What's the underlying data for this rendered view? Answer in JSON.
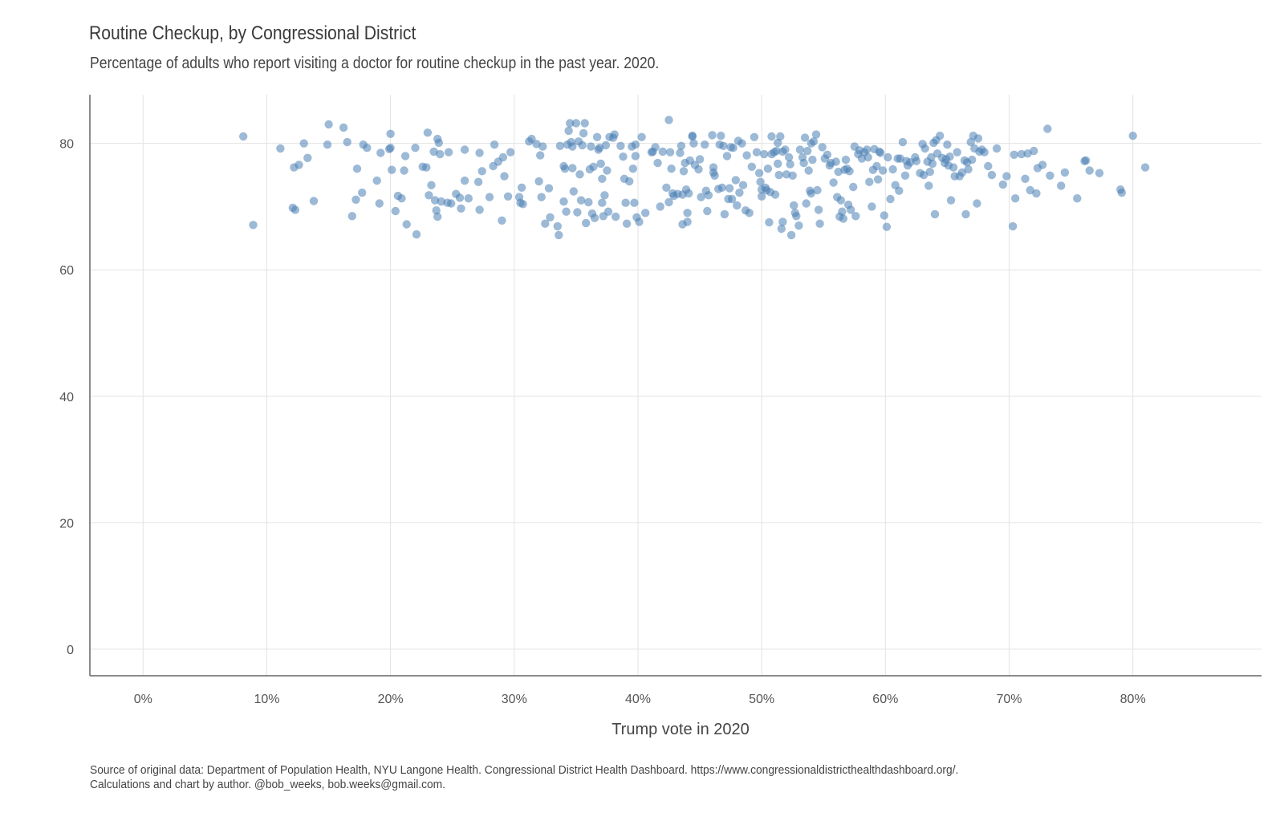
{
  "chart_data": {
    "type": "scatter",
    "title": "Routine Checkup, by Congressional District",
    "subtitle": "Percentage of adults who report visiting a doctor for routine checkup in the past year. 2020.",
    "xlabel": "Trump vote in 2020",
    "ylabel": "",
    "xlim": [
      -0.043,
      0.904
    ],
    "ylim": [
      -4.2,
      87.7
    ],
    "x_ticks": [
      0,
      0.1,
      0.2,
      0.3,
      0.4,
      0.5,
      0.6,
      0.7,
      0.8
    ],
    "x_tick_labels": [
      "0%",
      "10%",
      "20%",
      "30%",
      "40%",
      "50%",
      "60%",
      "70%",
      "80%"
    ],
    "y_ticks": [
      0,
      20,
      40,
      60,
      80
    ],
    "y_tick_labels": [
      "0",
      "20",
      "40",
      "60",
      "80"
    ],
    "grid": true,
    "marker_color": "#4a80b4",
    "points": [
      [
        0.081,
        81.1
      ],
      [
        0.089,
        67.1
      ],
      [
        0.111,
        79.2
      ],
      [
        0.121,
        69.8
      ],
      [
        0.122,
        76.2
      ],
      [
        0.123,
        69.5
      ],
      [
        0.126,
        76.6
      ],
      [
        0.13,
        80.0
      ],
      [
        0.133,
        77.7
      ],
      [
        0.138,
        70.9
      ],
      [
        0.149,
        79.8
      ],
      [
        0.15,
        83.0
      ],
      [
        0.162,
        82.5
      ],
      [
        0.165,
        80.2
      ],
      [
        0.169,
        68.5
      ],
      [
        0.172,
        71.1
      ],
      [
        0.173,
        76.0
      ],
      [
        0.177,
        72.2
      ],
      [
        0.178,
        79.8
      ],
      [
        0.181,
        79.3
      ],
      [
        0.189,
        74.1
      ],
      [
        0.191,
        70.5
      ],
      [
        0.192,
        78.5
      ],
      [
        0.199,
        79.1
      ],
      [
        0.2,
        81.5
      ],
      [
        0.2,
        79.3
      ],
      [
        0.201,
        75.8
      ],
      [
        0.204,
        69.3
      ],
      [
        0.206,
        71.7
      ],
      [
        0.209,
        71.3
      ],
      [
        0.211,
        75.7
      ],
      [
        0.212,
        78.0
      ],
      [
        0.213,
        67.2
      ],
      [
        0.22,
        79.3
      ],
      [
        0.221,
        65.6
      ],
      [
        0.226,
        76.3
      ],
      [
        0.229,
        76.2
      ],
      [
        0.23,
        81.7
      ],
      [
        0.231,
        71.8
      ],
      [
        0.233,
        73.4
      ],
      [
        0.235,
        78.7
      ],
      [
        0.236,
        71.0
      ],
      [
        0.237,
        69.4
      ],
      [
        0.238,
        68.4
      ],
      [
        0.238,
        80.7
      ],
      [
        0.239,
        80.1
      ],
      [
        0.24,
        78.3
      ],
      [
        0.241,
        70.8
      ],
      [
        0.246,
        70.6
      ],
      [
        0.247,
        78.6
      ],
      [
        0.249,
        70.5
      ],
      [
        0.253,
        72.0
      ],
      [
        0.256,
        71.4
      ],
      [
        0.257,
        69.7
      ],
      [
        0.26,
        74.1
      ],
      [
        0.26,
        79.0
      ],
      [
        0.263,
        71.3
      ],
      [
        0.271,
        73.9
      ],
      [
        0.272,
        78.5
      ],
      [
        0.272,
        69.5
      ],
      [
        0.274,
        75.6
      ],
      [
        0.28,
        71.5
      ],
      [
        0.283,
        76.4
      ],
      [
        0.284,
        79.8
      ],
      [
        0.287,
        77.1
      ],
      [
        0.29,
        67.8
      ],
      [
        0.291,
        77.8
      ],
      [
        0.292,
        74.8
      ],
      [
        0.295,
        71.6
      ],
      [
        0.297,
        78.6
      ],
      [
        0.304,
        71.5
      ],
      [
        0.305,
        70.6
      ],
      [
        0.306,
        73.0
      ],
      [
        0.307,
        70.4
      ],
      [
        0.312,
        80.3
      ],
      [
        0.314,
        80.7
      ],
      [
        0.318,
        79.9
      ],
      [
        0.32,
        74.0
      ],
      [
        0.321,
        78.1
      ],
      [
        0.322,
        71.5
      ],
      [
        0.323,
        79.5
      ],
      [
        0.325,
        67.3
      ],
      [
        0.328,
        72.9
      ],
      [
        0.329,
        68.3
      ],
      [
        0.335,
        66.9
      ],
      [
        0.336,
        65.5
      ],
      [
        0.337,
        79.6
      ],
      [
        0.34,
        76.4
      ],
      [
        0.34,
        70.8
      ],
      [
        0.341,
        76.0
      ],
      [
        0.342,
        69.2
      ],
      [
        0.343,
        79.8
      ],
      [
        0.344,
        82.0
      ],
      [
        0.345,
        83.2
      ],
      [
        0.346,
        80.2
      ],
      [
        0.347,
        79.5
      ],
      [
        0.347,
        76.1
      ],
      [
        0.348,
        72.4
      ],
      [
        0.35,
        83.2
      ],
      [
        0.351,
        69.1
      ],
      [
        0.352,
        80.3
      ],
      [
        0.353,
        75.1
      ],
      [
        0.354,
        71.0
      ],
      [
        0.355,
        79.7
      ],
      [
        0.356,
        81.6
      ],
      [
        0.357,
        83.2
      ],
      [
        0.358,
        67.4
      ],
      [
        0.36,
        70.7
      ],
      [
        0.361,
        75.9
      ],
      [
        0.362,
        79.5
      ],
      [
        0.363,
        68.9
      ],
      [
        0.364,
        76.3
      ],
      [
        0.365,
        68.2
      ],
      [
        0.367,
        81.0
      ],
      [
        0.368,
        79.0
      ],
      [
        0.369,
        79.3
      ],
      [
        0.37,
        76.8
      ],
      [
        0.371,
        70.6
      ],
      [
        0.371,
        74.4
      ],
      [
        0.372,
        68.5
      ],
      [
        0.373,
        71.8
      ],
      [
        0.374,
        79.7
      ],
      [
        0.375,
        75.7
      ],
      [
        0.376,
        69.2
      ],
      [
        0.377,
        81.0
      ],
      [
        0.38,
        80.9
      ],
      [
        0.381,
        81.4
      ],
      [
        0.382,
        68.4
      ],
      [
        0.386,
        79.6
      ],
      [
        0.388,
        77.9
      ],
      [
        0.389,
        74.4
      ],
      [
        0.39,
        70.6
      ],
      [
        0.391,
        67.3
      ],
      [
        0.393,
        74.0
      ],
      [
        0.395,
        79.5
      ],
      [
        0.396,
        76.0
      ],
      [
        0.397,
        70.6
      ],
      [
        0.398,
        78.0
      ],
      [
        0.398,
        79.8
      ],
      [
        0.399,
        68.3
      ],
      [
        0.401,
        67.6
      ],
      [
        0.403,
        81.0
      ],
      [
        0.406,
        69.0
      ],
      [
        0.411,
        78.6
      ],
      [
        0.412,
        78.7
      ],
      [
        0.414,
        79.4
      ],
      [
        0.416,
        76.9
      ],
      [
        0.418,
        70.0
      ],
      [
        0.42,
        78.7
      ],
      [
        0.423,
        73.0
      ],
      [
        0.425,
        83.7
      ],
      [
        0.425,
        70.7
      ],
      [
        0.426,
        78.6
      ],
      [
        0.427,
        76.0
      ],
      [
        0.428,
        72.1
      ],
      [
        0.429,
        71.7
      ],
      [
        0.432,
        72.0
      ],
      [
        0.434,
        78.5
      ],
      [
        0.435,
        79.6
      ],
      [
        0.436,
        67.2
      ],
      [
        0.436,
        71.9
      ],
      [
        0.437,
        75.6
      ],
      [
        0.438,
        76.9
      ],
      [
        0.439,
        72.7
      ],
      [
        0.44,
        67.6
      ],
      [
        0.44,
        69.0
      ],
      [
        0.441,
        72.1
      ],
      [
        0.442,
        77.3
      ],
      [
        0.444,
        81.2
      ],
      [
        0.444,
        81.1
      ],
      [
        0.445,
        80.0
      ],
      [
        0.446,
        76.6
      ],
      [
        0.449,
        75.9
      ],
      [
        0.45,
        77.5
      ],
      [
        0.451,
        71.5
      ],
      [
        0.454,
        79.8
      ],
      [
        0.455,
        72.5
      ],
      [
        0.456,
        69.3
      ],
      [
        0.457,
        71.8
      ],
      [
        0.46,
        81.3
      ],
      [
        0.461,
        76.2
      ],
      [
        0.461,
        75.4
      ],
      [
        0.462,
        74.9
      ],
      [
        0.465,
        72.8
      ],
      [
        0.466,
        79.8
      ],
      [
        0.467,
        81.2
      ],
      [
        0.468,
        73.0
      ],
      [
        0.469,
        79.6
      ],
      [
        0.47,
        68.8
      ],
      [
        0.472,
        78.0
      ],
      [
        0.473,
        71.2
      ],
      [
        0.474,
        72.9
      ],
      [
        0.475,
        79.4
      ],
      [
        0.476,
        71.2
      ],
      [
        0.477,
        79.3
      ],
      [
        0.479,
        74.2
      ],
      [
        0.48,
        70.2
      ],
      [
        0.481,
        80.4
      ],
      [
        0.482,
        72.2
      ],
      [
        0.484,
        80.0
      ],
      [
        0.485,
        73.4
      ],
      [
        0.487,
        69.4
      ],
      [
        0.488,
        78.1
      ],
      [
        0.49,
        69.0
      ],
      [
        0.492,
        76.3
      ],
      [
        0.494,
        81.0
      ],
      [
        0.496,
        78.6
      ],
      [
        0.498,
        75.3
      ],
      [
        0.499,
        73.9
      ],
      [
        0.5,
        72.7
      ],
      [
        0.5,
        71.6
      ],
      [
        0.502,
        78.3
      ],
      [
        0.503,
        73.0
      ],
      [
        0.504,
        72.6
      ],
      [
        0.505,
        76.0
      ],
      [
        0.506,
        67.5
      ],
      [
        0.507,
        72.3
      ],
      [
        0.508,
        78.3
      ],
      [
        0.508,
        81.1
      ],
      [
        0.51,
        78.6
      ],
      [
        0.511,
        71.9
      ],
      [
        0.512,
        78.8
      ],
      [
        0.513,
        76.8
      ],
      [
        0.513,
        80.1
      ],
      [
        0.514,
        75.0
      ],
      [
        0.515,
        81.1
      ],
      [
        0.516,
        66.5
      ],
      [
        0.517,
        67.6
      ],
      [
        0.517,
        78.7
      ],
      [
        0.519,
        79.0
      ],
      [
        0.52,
        75.1
      ],
      [
        0.522,
        77.8
      ],
      [
        0.523,
        76.7
      ],
      [
        0.524,
        65.5
      ],
      [
        0.525,
        74.9
      ],
      [
        0.526,
        70.2
      ],
      [
        0.527,
        69.0
      ],
      [
        0.528,
        68.5
      ],
      [
        0.53,
        67.0
      ],
      [
        0.531,
        79.0
      ],
      [
        0.533,
        77.8
      ],
      [
        0.534,
        76.9
      ],
      [
        0.535,
        80.9
      ],
      [
        0.536,
        70.5
      ],
      [
        0.537,
        78.8
      ],
      [
        0.538,
        75.7
      ],
      [
        0.539,
        72.5
      ],
      [
        0.54,
        80.0
      ],
      [
        0.54,
        72.1
      ],
      [
        0.541,
        77.4
      ],
      [
        0.542,
        80.3
      ],
      [
        0.544,
        81.4
      ],
      [
        0.545,
        72.6
      ],
      [
        0.546,
        69.5
      ],
      [
        0.547,
        67.3
      ],
      [
        0.549,
        79.4
      ],
      [
        0.551,
        77.6
      ],
      [
        0.553,
        78.2
      ],
      [
        0.555,
        76.5
      ],
      [
        0.556,
        76.9
      ],
      [
        0.558,
        73.8
      ],
      [
        0.56,
        77.1
      ],
      [
        0.561,
        71.5
      ],
      [
        0.562,
        75.5
      ],
      [
        0.563,
        68.4
      ],
      [
        0.564,
        71.0
      ],
      [
        0.565,
        69.2
      ],
      [
        0.566,
        68.1
      ],
      [
        0.567,
        75.8
      ],
      [
        0.568,
        77.4
      ],
      [
        0.569,
        76.0
      ],
      [
        0.57,
        70.3
      ],
      [
        0.571,
        75.6
      ],
      [
        0.572,
        69.5
      ],
      [
        0.574,
        73.1
      ],
      [
        0.575,
        79.5
      ],
      [
        0.576,
        68.5
      ],
      [
        0.578,
        78.3
      ],
      [
        0.579,
        78.9
      ],
      [
        0.581,
        77.6
      ],
      [
        0.583,
        78.6
      ],
      [
        0.585,
        79.0
      ],
      [
        0.586,
        77.8
      ],
      [
        0.587,
        73.9
      ],
      [
        0.589,
        70.0
      ],
      [
        0.59,
        75.8
      ],
      [
        0.591,
        79.1
      ],
      [
        0.593,
        76.4
      ],
      [
        0.594,
        74.3
      ],
      [
        0.595,
        78.7
      ],
      [
        0.596,
        78.5
      ],
      [
        0.598,
        75.7
      ],
      [
        0.599,
        68.6
      ],
      [
        0.601,
        66.8
      ],
      [
        0.602,
        77.8
      ],
      [
        0.604,
        71.2
      ],
      [
        0.606,
        75.9
      ],
      [
        0.608,
        73.4
      ],
      [
        0.61,
        77.6
      ],
      [
        0.611,
        72.5
      ],
      [
        0.612,
        77.6
      ],
      [
        0.614,
        80.2
      ],
      [
        0.616,
        74.9
      ],
      [
        0.617,
        77.2
      ],
      [
        0.618,
        76.5
      ],
      [
        0.62,
        77.0
      ],
      [
        0.624,
        77.8
      ],
      [
        0.625,
        77.2
      ],
      [
        0.628,
        75.3
      ],
      [
        0.63,
        79.9
      ],
      [
        0.631,
        75.0
      ],
      [
        0.632,
        79.2
      ],
      [
        0.634,
        77.1
      ],
      [
        0.635,
        73.3
      ],
      [
        0.636,
        75.5
      ],
      [
        0.637,
        77.8
      ],
      [
        0.638,
        76.8
      ],
      [
        0.639,
        80.1
      ],
      [
        0.64,
        68.8
      ],
      [
        0.641,
        80.5
      ],
      [
        0.642,
        78.4
      ],
      [
        0.644,
        81.2
      ],
      [
        0.646,
        77.7
      ],
      [
        0.648,
        76.9
      ],
      [
        0.649,
        77.5
      ],
      [
        0.65,
        79.8
      ],
      [
        0.651,
        76.5
      ],
      [
        0.652,
        77.9
      ],
      [
        0.653,
        71.0
      ],
      [
        0.655,
        76.2
      ],
      [
        0.656,
        74.8
      ],
      [
        0.658,
        78.6
      ],
      [
        0.66,
        74.8
      ],
      [
        0.662,
        75.4
      ],
      [
        0.664,
        77.3
      ],
      [
        0.665,
        68.8
      ],
      [
        0.666,
        77.0
      ],
      [
        0.667,
        75.9
      ],
      [
        0.669,
        80.2
      ],
      [
        0.67,
        77.4
      ],
      [
        0.671,
        81.2
      ],
      [
        0.672,
        79.2
      ],
      [
        0.674,
        70.5
      ],
      [
        0.675,
        80.8
      ],
      [
        0.676,
        78.7
      ],
      [
        0.678,
        79.0
      ],
      [
        0.68,
        78.6
      ],
      [
        0.683,
        76.4
      ],
      [
        0.686,
        75.0
      ],
      [
        0.69,
        79.2
      ],
      [
        0.695,
        73.5
      ],
      [
        0.698,
        74.8
      ],
      [
        0.703,
        66.9
      ],
      [
        0.704,
        78.2
      ],
      [
        0.705,
        71.3
      ],
      [
        0.71,
        78.3
      ],
      [
        0.713,
        74.4
      ],
      [
        0.715,
        78.4
      ],
      [
        0.717,
        72.6
      ],
      [
        0.72,
        78.8
      ],
      [
        0.722,
        72.1
      ],
      [
        0.723,
        76.1
      ],
      [
        0.727,
        76.6
      ],
      [
        0.731,
        82.3
      ],
      [
        0.733,
        74.9
      ],
      [
        0.742,
        73.3
      ],
      [
        0.745,
        75.4
      ],
      [
        0.755,
        71.3
      ],
      [
        0.761,
        77.2
      ],
      [
        0.762,
        77.3
      ],
      [
        0.765,
        75.7
      ],
      [
        0.773,
        75.3
      ],
      [
        0.79,
        72.7
      ],
      [
        0.791,
        72.2
      ],
      [
        0.8,
        81.2
      ],
      [
        0.81,
        76.2
      ]
    ]
  },
  "footer": {
    "source_line1": "Source of original data: Department of Population Health, NYU Langone Health. Congressional District Health Dashboard. https://www.congressionaldistricthealthdashboard.org/.",
    "source_line2": "Calculations and chart by author. @bob_weeks, bob.weeks@gmail.com."
  }
}
